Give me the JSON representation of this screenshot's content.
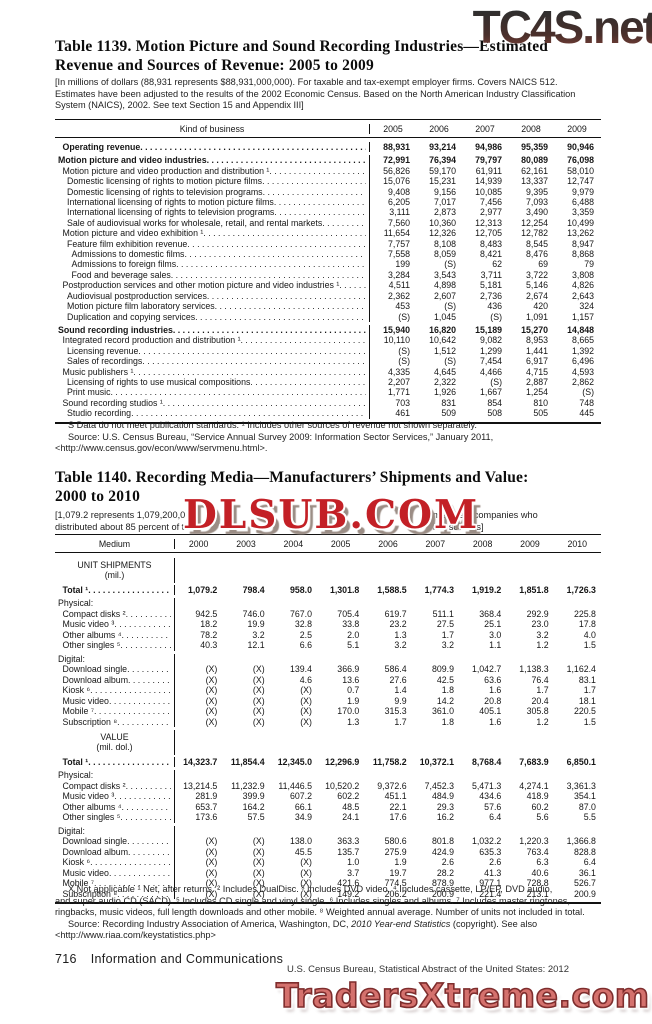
{
  "watermarks": {
    "top": "TC4S.net",
    "middle": "DLSUB.COM",
    "bottom": "TradersXtreme.com"
  },
  "table1139": {
    "title_line1": "Table 1139. Motion Picture and Sound Recording Industries—Estimated",
    "title_line2": "Revenue and Sources of Revenue: 2005 to 2009",
    "note_line1": "[In millions of dollars (88,931 represents $88,931,000,000). For taxable and tax-exempt employer firms. Covers NAICS 512.",
    "note_line2": "Estimates have been adjusted to the results of the 2002 Economic Census. Based on the North American Industry Classification",
    "note_line3": "System (NAICS), 2002. See text Section 15 and Appendix III]",
    "col_header": "Kind of business",
    "years": [
      "2005",
      "2006",
      "2007",
      "2008",
      "2009"
    ],
    "rows": [
      {
        "label": "Operating revenue",
        "indent": 1,
        "bold": true,
        "gap": "gap2",
        "values": [
          "88,931",
          "93,214",
          "94,986",
          "95,359",
          "90,946"
        ]
      },
      {
        "label": "Motion picture and video industries",
        "indent": 0,
        "bold": true,
        "gap": "gap",
        "values": [
          "72,991",
          "76,394",
          "79,797",
          "80,089",
          "76,098"
        ]
      },
      {
        "label": "Motion picture and video production and distribution ¹",
        "indent": 1,
        "values": [
          "56,826",
          "59,170",
          "61,911",
          "62,161",
          "58,010"
        ]
      },
      {
        "label": "Domestic licensing of rights to motion picture films",
        "indent": 2,
        "values": [
          "15,076",
          "15,231",
          "14,939",
          "13,337",
          "12,747"
        ]
      },
      {
        "label": "Domestic licensing of rights to television programs",
        "indent": 2,
        "values": [
          "9,408",
          "9,156",
          "10,085",
          "9,395",
          "9,979"
        ]
      },
      {
        "label": "International licensing of rights to motion picture films",
        "indent": 2,
        "values": [
          "6,205",
          "7,017",
          "7,456",
          "7,093",
          "6,488"
        ]
      },
      {
        "label": "International licensing of rights to television programs",
        "indent": 2,
        "values": [
          "3,111",
          "2,873",
          "2,977",
          "3,490",
          "3,359"
        ]
      },
      {
        "label": "Sale of audiovisual works for wholesale, retail, and rental markets",
        "indent": 2,
        "values": [
          "7,560",
          "10,360",
          "12,313",
          "12,254",
          "10,499"
        ]
      },
      {
        "label": "Motion picture and video exhibition ¹",
        "indent": 1,
        "values": [
          "11,654",
          "12,326",
          "12,705",
          "12,782",
          "13,262"
        ]
      },
      {
        "label": "Feature film exhibition revenue",
        "indent": 2,
        "values": [
          "7,757",
          "8,108",
          "8,483",
          "8,545",
          "8,947"
        ]
      },
      {
        "label": "Admissions to domestic films",
        "indent": 3,
        "values": [
          "7,558",
          "8,059",
          "8,421",
          "8,476",
          "8,868"
        ]
      },
      {
        "label": "Admissions to foreign films",
        "indent": 3,
        "values": [
          "199",
          "(S)",
          "62",
          "69",
          "79"
        ]
      },
      {
        "label": "Food and beverage sales",
        "indent": 3,
        "values": [
          "3,284",
          "3,543",
          "3,711",
          "3,722",
          "3,808"
        ]
      },
      {
        "label": "Postproduction services and other motion picture and video industries ¹",
        "indent": 1,
        "values": [
          "4,511",
          "4,898",
          "5,181",
          "5,146",
          "4,826"
        ]
      },
      {
        "label": "Audiovisual postproduction services",
        "indent": 2,
        "values": [
          "2,362",
          "2,607",
          "2,736",
          "2,674",
          "2,643"
        ]
      },
      {
        "label": "Motion picture film laboratory services",
        "indent": 2,
        "values": [
          "453",
          "(S)",
          "436",
          "420",
          "324"
        ]
      },
      {
        "label": "Duplication and copying services",
        "indent": 2,
        "values": [
          "(S)",
          "1,045",
          "(S)",
          "1,091",
          "1,157"
        ]
      },
      {
        "label": "Sound recording industries",
        "indent": 0,
        "bold": true,
        "gap": "gap",
        "values": [
          "15,940",
          "16,820",
          "15,189",
          "15,270",
          "14,848"
        ]
      },
      {
        "label": "Integrated record production and distribution ¹",
        "indent": 1,
        "values": [
          "10,110",
          "10,642",
          "9,082",
          "8,953",
          "8,665"
        ]
      },
      {
        "label": "Licensing revenue",
        "indent": 2,
        "values": [
          "(S)",
          "1,512",
          "1,299",
          "1,441",
          "1,392"
        ]
      },
      {
        "label": "Sales of recordings",
        "indent": 2,
        "values": [
          "(S)",
          "(S)",
          "7,454",
          "6,917",
          "6,496"
        ]
      },
      {
        "label": "Music publishers ¹",
        "indent": 1,
        "values": [
          "4,335",
          "4,645",
          "4,466",
          "4,715",
          "4,593"
        ]
      },
      {
        "label": "Licensing of rights to use musical compositions",
        "indent": 2,
        "values": [
          "2,207",
          "2,322",
          "(S)",
          "2,887",
          "2,862"
        ]
      },
      {
        "label": "Print music",
        "indent": 2,
        "values": [
          "1,771",
          "1,926",
          "1,667",
          "1,254",
          "(S)"
        ]
      },
      {
        "label": "Sound recording studios ¹",
        "indent": 1,
        "values": [
          "703",
          "831",
          "854",
          "810",
          "748"
        ]
      },
      {
        "label": "Studio recording",
        "indent": 2,
        "values": [
          "461",
          "509",
          "508",
          "505",
          "445"
        ]
      }
    ],
    "footnote": "S Data do not meet publication standards. ¹ Includes other sources of revenue not shown separately.",
    "source_line1": "Source: U.S. Census Bureau, “Service Annual Survey 2009: Information Sector Services,” January 2011,",
    "source_line2": "<http://www.census.gov/econ/www/servmenu.html>."
  },
  "table1140": {
    "title_line1": "Table 1140. Recording Media—Manufacturers’ Shipments and Value:",
    "title_line2": "2000 to 2010",
    "note_left1": "[1,079.2 represents 1,079,200,0",
    "note_right1": "members companies who",
    "note_left2": "distributed about 85 percent of t",
    "note_right2": "her sources]",
    "col_header": "Medium",
    "years": [
      "2000",
      "2003",
      "2004",
      "2005",
      "2006",
      "2007",
      "2008",
      "2009",
      "2010"
    ],
    "sections": [
      {
        "header1": "UNIT SHIPMENTS",
        "header2": "(mil.)",
        "rows": [
          {
            "label": "Total ¹",
            "indent": 1,
            "bold": true,
            "gap": "gap2",
            "values": [
              "1,079.2",
              "798.4",
              "958.0",
              "1,301.8",
              "1,588.5",
              "1,774.3",
              "1,919.2",
              "1,851.8",
              "1,726.3"
            ]
          },
          {
            "label": "Physical:",
            "cat": true,
            "gap": "gap"
          },
          {
            "label": "Compact disks ²",
            "indent": 1,
            "values": [
              "942.5",
              "746.0",
              "767.0",
              "705.4",
              "619.7",
              "511.1",
              "368.4",
              "292.9",
              "225.8"
            ]
          },
          {
            "label": "Music video ³",
            "indent": 1,
            "values": [
              "18.2",
              "19.9",
              "32.8",
              "33.8",
              "23.2",
              "27.5",
              "25.1",
              "23.0",
              "17.8"
            ]
          },
          {
            "label": "Other albums ⁴",
            "indent": 1,
            "values": [
              "78.2",
              "3.2",
              "2.5",
              "2.0",
              "1.3",
              "1.7",
              "3.0",
              "3.2",
              "4.0"
            ]
          },
          {
            "label": "Other singles ⁵",
            "indent": 1,
            "values": [
              "40.3",
              "12.1",
              "6.6",
              "5.1",
              "3.2",
              "3.2",
              "1.1",
              "1.2",
              "1.5"
            ]
          },
          {
            "label": "Digital:",
            "cat": true,
            "gap": "gap"
          },
          {
            "label": "Download single",
            "indent": 1,
            "values": [
              "(X)",
              "(X)",
              "139.4",
              "366.9",
              "586.4",
              "809.9",
              "1,042.7",
              "1,138.3",
              "1,162.4"
            ]
          },
          {
            "label": "Download album",
            "indent": 1,
            "values": [
              "(X)",
              "(X)",
              "4.6",
              "13.6",
              "27.6",
              "42.5",
              "63.6",
              "76.4",
              "83.1"
            ]
          },
          {
            "label": "Kiosk ⁶",
            "indent": 1,
            "values": [
              "(X)",
              "(X)",
              "(X)",
              "0.7",
              "1.4",
              "1.8",
              "1.6",
              "1.7",
              "1.7"
            ]
          },
          {
            "label": "Music video",
            "indent": 1,
            "values": [
              "(X)",
              "(X)",
              "(X)",
              "1.9",
              "9.9",
              "14.2",
              "20.8",
              "20.4",
              "18.1"
            ]
          },
          {
            "label": "Mobile ⁷",
            "indent": 1,
            "values": [
              "(X)",
              "(X)",
              "(X)",
              "170.0",
              "315.3",
              "361.0",
              "405.1",
              "305.8",
              "220.5"
            ]
          },
          {
            "label": "Subscription ⁸",
            "indent": 1,
            "values": [
              "(X)",
              "(X)",
              "(X)",
              "1.3",
              "1.7",
              "1.8",
              "1.6",
              "1.2",
              "1.5"
            ]
          }
        ]
      },
      {
        "header1": "VALUE",
        "header2": "(mil. dol.)",
        "rows": [
          {
            "label": "Total ¹",
            "indent": 1,
            "bold": true,
            "gap": "gap2",
            "values": [
              "14,323.7",
              "11,854.4",
              "12,345.0",
              "12,296.9",
              "11,758.2",
              "10,372.1",
              "8,768.4",
              "7,683.9",
              "6,850.1"
            ]
          },
          {
            "label": "Physical:",
            "cat": true,
            "gap": "gap"
          },
          {
            "label": "Compact disks ²",
            "indent": 1,
            "values": [
              "13,214.5",
              "11,232.9",
              "11,446.5",
              "10,520.2",
              "9,372.6",
              "7,452.3",
              "5,471.3",
              "4,274.1",
              "3,361.3"
            ]
          },
          {
            "label": "Music video ³",
            "indent": 1,
            "values": [
              "281.9",
              "399.9",
              "607.2",
              "602.2",
              "451.1",
              "484.9",
              "434.6",
              "418.9",
              "354.1"
            ]
          },
          {
            "label": "Other albums ⁴",
            "indent": 1,
            "values": [
              "653.7",
              "164.2",
              "66.1",
              "48.5",
              "22.1",
              "29.3",
              "57.6",
              "60.2",
              "87.0"
            ]
          },
          {
            "label": "Other singles ⁵",
            "indent": 1,
            "values": [
              "173.6",
              "57.5",
              "34.9",
              "24.1",
              "17.6",
              "16.2",
              "6.4",
              "5.6",
              "5.5"
            ]
          },
          {
            "label": "Digital:",
            "cat": true,
            "gap": "gap"
          },
          {
            "label": "Download single",
            "indent": 1,
            "values": [
              "(X)",
              "(X)",
              "138.0",
              "363.3",
              "580.6",
              "801.8",
              "1,032.2",
              "1,220.3",
              "1,366.8"
            ]
          },
          {
            "label": "Download album",
            "indent": 1,
            "values": [
              "(X)",
              "(X)",
              "45.5",
              "135.7",
              "275.9",
              "424.9",
              "635.3",
              "763.4",
              "828.8"
            ]
          },
          {
            "label": "Kiosk ⁶",
            "indent": 1,
            "values": [
              "(X)",
              "(X)",
              "(X)",
              "1.0",
              "1.9",
              "2.6",
              "2.6",
              "6.3",
              "6.4"
            ]
          },
          {
            "label": "Music video",
            "indent": 1,
            "values": [
              "(X)",
              "(X)",
              "(X)",
              "3.7",
              "19.7",
              "28.2",
              "41.3",
              "40.6",
              "36.1"
            ]
          },
          {
            "label": "Mobile ⁷",
            "indent": 1,
            "values": [
              "(X)",
              "(X)",
              "(X)",
              "421.6",
              "774.5",
              "878.9",
              "977.1",
              "728.8",
              "526.7"
            ]
          },
          {
            "label": "Subscription ⁸",
            "indent": 1,
            "values": [
              "(X)",
              "(X)",
              "(X)",
              "149.2",
              "206.2",
              "200.9",
              "221.4",
              "213.1",
              "200.9"
            ]
          }
        ]
      }
    ],
    "footnote_lines": [
      "X Not applicable ¹ Net, after returns. ² Includes DualDisc. ³ Includes DVD video. ⁴ Includes cassette, LP/EP, DVD audio,",
      "and super audio CD (SACD). ⁵ Includes CD single and vinyl single. ⁶ Includes singles and albums. ⁷ Includes master ringtones,",
      "ringbacks, music videos, full length downloads and other mobile. ⁸ Weighted annual average. Number of units not included in total."
    ],
    "source_pre": "Source: Recording Industry Association of America, Washington, DC, ",
    "source_italic": "2010 Year-end Statistics",
    "source_post": " (copyright). See also",
    "source_line2": "<http://www.riaa.com/keystatistics.php>"
  },
  "footer": {
    "page": "716",
    "section": "Information and Communications",
    "right": "U.S. Census Bureau, Statistical Abstract of the United States: 2012"
  }
}
